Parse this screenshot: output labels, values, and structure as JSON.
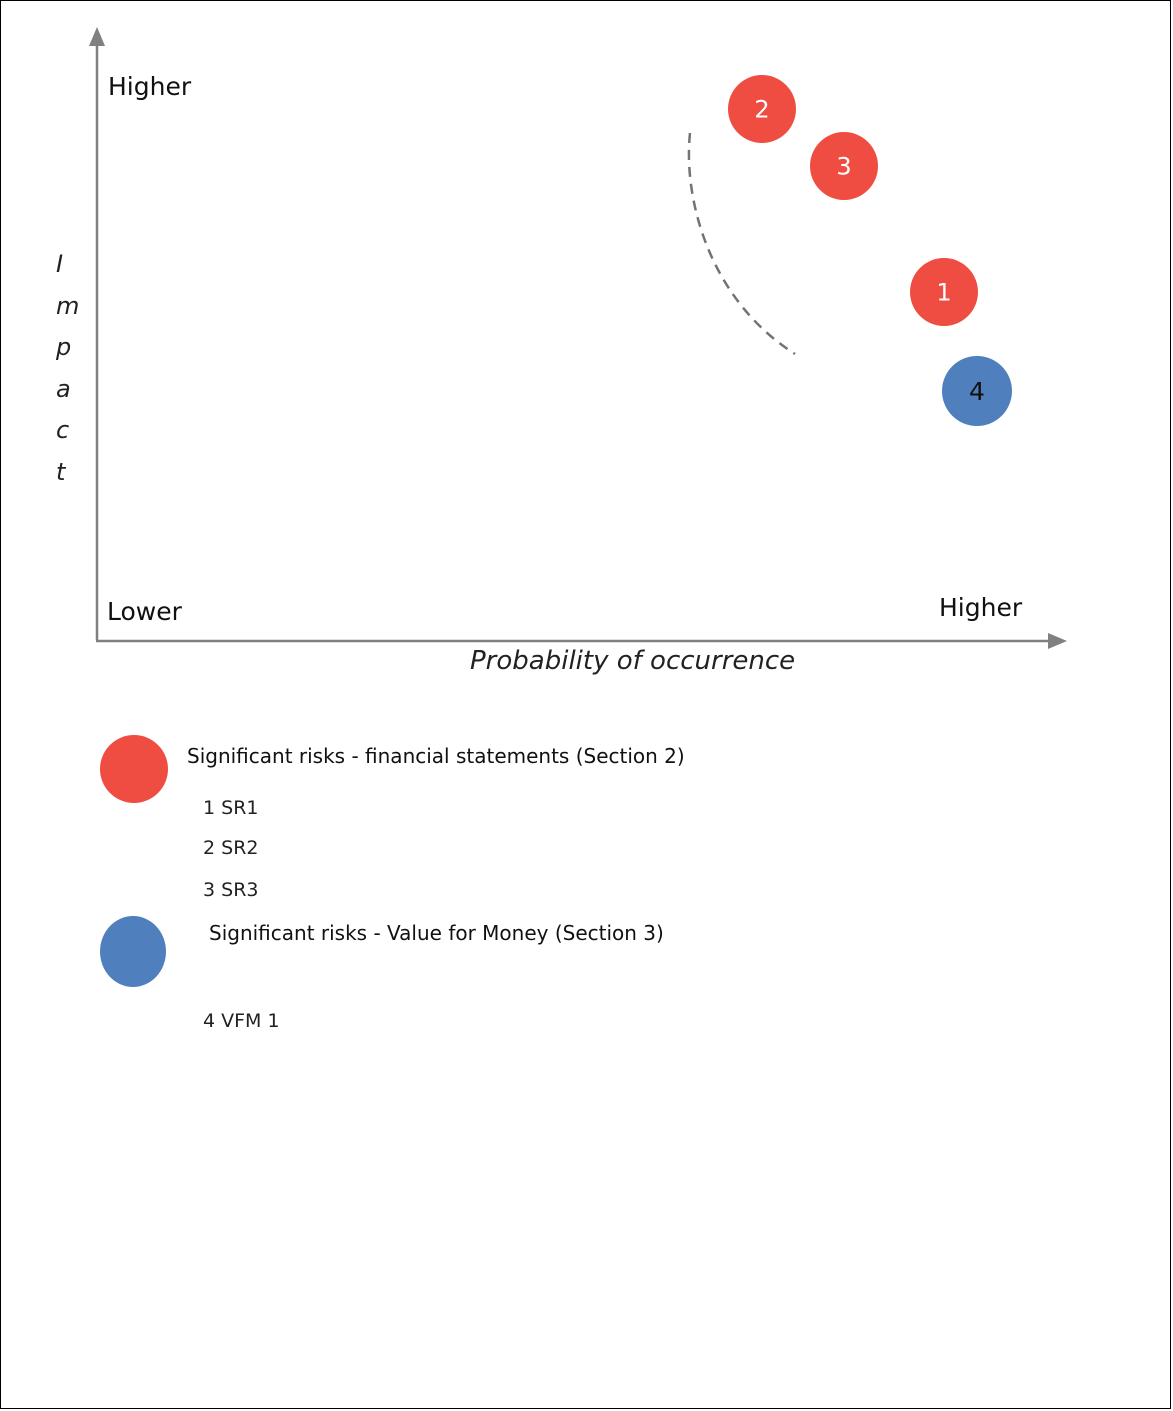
{
  "colors": {
    "financial": "#ef4d42",
    "vfm": "#4f7fbd",
    "axis": "#808080",
    "curve": "#737373"
  },
  "axes": {
    "y_high": "Higher",
    "x_low": "Lower",
    "x_high": "Higher",
    "y_title": "Impact",
    "x_title": "Probability of occurrence"
  },
  "risks": [
    {
      "label": "2",
      "category": "financial"
    },
    {
      "label": "3",
      "category": "financial"
    },
    {
      "label": "1",
      "category": "financial"
    },
    {
      "label": "4",
      "category": "vfm"
    }
  ],
  "legend": {
    "financial": {
      "title": "Significant risks - financial statements  (Section 2)",
      "items": [
        "1  SR1",
        "2  SR2",
        "3  SR3"
      ]
    },
    "vfm": {
      "title": "Significant risks - Value for Money (Section 3)",
      "items": [
        "4  VFM 1"
      ]
    }
  }
}
